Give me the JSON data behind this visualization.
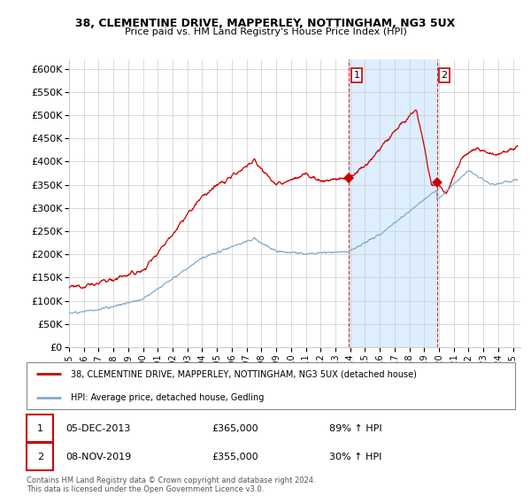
{
  "title": "38, CLEMENTINE DRIVE, MAPPERLEY, NOTTINGHAM, NG3 5UX",
  "subtitle": "Price paid vs. HM Land Registry's House Price Index (HPI)",
  "legend_line1": "38, CLEMENTINE DRIVE, MAPPERLEY, NOTTINGHAM, NG3 5UX (detached house)",
  "legend_line2": "HPI: Average price, detached house, Gedling",
  "annotation1_date": "05-DEC-2013",
  "annotation1_price": "£365,000",
  "annotation1_hpi": "89% ↑ HPI",
  "annotation2_date": "08-NOV-2019",
  "annotation2_price": "£355,000",
  "annotation2_hpi": "30% ↑ HPI",
  "footer": "Contains HM Land Registry data © Crown copyright and database right 2024.\nThis data is licensed under the Open Government Licence v3.0.",
  "red_color": "#cc0000",
  "blue_color": "#88aacc",
  "highlight_bg": "#ddeeff",
  "ylim": [
    0,
    620000
  ],
  "ytick_vals": [
    0,
    50000,
    100000,
    150000,
    200000,
    250000,
    300000,
    350000,
    400000,
    450000,
    500000,
    550000,
    600000
  ],
  "ytick_labels": [
    "£0",
    "£50K",
    "£100K",
    "£150K",
    "£200K",
    "£250K",
    "£300K",
    "£350K",
    "£400K",
    "£450K",
    "£500K",
    "£550K",
    "£600K"
  ],
  "sale1_x": 2013.92,
  "sale1_y": 365000,
  "sale2_x": 2019.85,
  "sale2_y": 355000,
  "highlight_start": 2013.92,
  "highlight_end": 2019.85,
  "xmin": 1995.0,
  "xmax": 2025.5
}
